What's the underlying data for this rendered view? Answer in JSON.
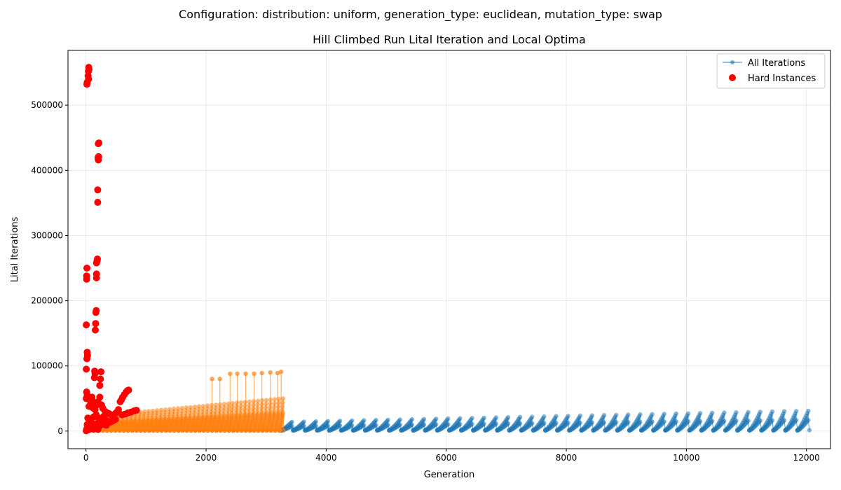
{
  "suptitle": "Configuration: distribution: uniform, generation_type: euclidean, mutation_type: swap",
  "chart_data": {
    "type": "scatter",
    "title": "Hill Climbed Run Lital Iteration and Local Optima",
    "xlabel": "Generation",
    "ylabel": "Lital Iterations",
    "xlim": [
      -300,
      12400
    ],
    "ylim": [
      -27000,
      584000
    ],
    "xticks": [
      0,
      2000,
      4000,
      6000,
      8000,
      10000,
      12000
    ],
    "yticks": [
      0,
      100000,
      200000,
      300000,
      400000,
      500000
    ],
    "grid": true,
    "legend": {
      "placement": "upper right",
      "entries": [
        "All Iterations",
        "Hard Instances"
      ]
    },
    "colors": {
      "blue_run": "#1f77b4",
      "orange_run": "#ff7f0e",
      "hard": "#ff0000"
    },
    "series": [
      {
        "name": "All Iterations",
        "style": "line-marker",
        "runs": [
          {
            "color": "#1f77b4",
            "x_start": 3250,
            "x_end": 12100,
            "cycle_length": 200,
            "peak_start": 14000,
            "peak_end": 31000,
            "trough": 1500
          },
          {
            "color": "#ff7f0e",
            "x_start": 0,
            "x_end": 3270,
            "cycle_length": 70,
            "peak_start": 22000,
            "peak_end": 50000,
            "trough": 1000,
            "spikes": [
              {
                "x": 2100,
                "y": 80000
              },
              {
                "x": 2230,
                "y": 80000
              },
              {
                "x": 2400,
                "y": 88000
              },
              {
                "x": 2520,
                "y": 88000
              },
              {
                "x": 2660,
                "y": 88000
              },
              {
                "x": 2800,
                "y": 88000
              },
              {
                "x": 2930,
                "y": 89000
              },
              {
                "x": 3070,
                "y": 90000
              },
              {
                "x": 3190,
                "y": 89000
              },
              {
                "x": 3250,
                "y": 91000
              }
            ]
          }
        ]
      },
      {
        "name": "Hard Instances",
        "style": "scatter",
        "points": [
          {
            "x": 45,
            "y": 558000
          },
          {
            "x": 50,
            "y": 555000
          },
          {
            "x": 40,
            "y": 552000
          },
          {
            "x": 35,
            "y": 545000
          },
          {
            "x": 42,
            "y": 540000
          },
          {
            "x": 20,
            "y": 535000
          },
          {
            "x": 15,
            "y": 532000
          },
          {
            "x": 215,
            "y": 442000
          },
          {
            "x": 205,
            "y": 441000
          },
          {
            "x": 210,
            "y": 421000
          },
          {
            "x": 200,
            "y": 419000
          },
          {
            "x": 205,
            "y": 416000
          },
          {
            "x": 195,
            "y": 370000
          },
          {
            "x": 195,
            "y": 351000
          },
          {
            "x": 190,
            "y": 264000
          },
          {
            "x": 185,
            "y": 261000
          },
          {
            "x": 175,
            "y": 258000
          },
          {
            "x": 15,
            "y": 250000
          },
          {
            "x": 175,
            "y": 241000
          },
          {
            "x": 10,
            "y": 238000
          },
          {
            "x": 175,
            "y": 235000
          },
          {
            "x": 10,
            "y": 233000
          },
          {
            "x": 170,
            "y": 185000
          },
          {
            "x": 165,
            "y": 182000
          },
          {
            "x": 160,
            "y": 165000
          },
          {
            "x": 5,
            "y": 163000
          },
          {
            "x": 155,
            "y": 155000
          },
          {
            "x": 20,
            "y": 121000
          },
          {
            "x": 25,
            "y": 116000
          },
          {
            "x": 15,
            "y": 111000
          },
          {
            "x": 5,
            "y": 95000
          },
          {
            "x": 145,
            "y": 92000
          },
          {
            "x": 250,
            "y": 91000
          },
          {
            "x": 150,
            "y": 88000
          },
          {
            "x": 140,
            "y": 82000
          },
          {
            "x": 240,
            "y": 80000
          },
          {
            "x": 230,
            "y": 70000
          },
          {
            "x": 10,
            "y": 60000
          },
          {
            "x": 20,
            "y": 55000
          },
          {
            "x": 5,
            "y": 50000
          },
          {
            "x": 100,
            "y": 52000
          },
          {
            "x": 60,
            "y": 48000
          },
          {
            "x": 230,
            "y": 52000
          },
          {
            "x": 120,
            "y": 45000
          },
          {
            "x": 80,
            "y": 42000
          },
          {
            "x": 200,
            "y": 45000
          },
          {
            "x": 180,
            "y": 40000
          },
          {
            "x": 50,
            "y": 38000
          },
          {
            "x": 110,
            "y": 36000
          },
          {
            "x": 260,
            "y": 40000
          },
          {
            "x": 280,
            "y": 35000
          },
          {
            "x": 150,
            "y": 33000
          },
          {
            "x": 320,
            "y": 30000
          },
          {
            "x": 350,
            "y": 28000
          },
          {
            "x": 380,
            "y": 27000
          },
          {
            "x": 420,
            "y": 25000
          },
          {
            "x": 460,
            "y": 24000
          },
          {
            "x": 500,
            "y": 28000
          },
          {
            "x": 540,
            "y": 33000
          },
          {
            "x": 570,
            "y": 45000
          },
          {
            "x": 590,
            "y": 48000
          },
          {
            "x": 610,
            "y": 52000
          },
          {
            "x": 640,
            "y": 56000
          },
          {
            "x": 670,
            "y": 60000
          },
          {
            "x": 690,
            "y": 62000
          },
          {
            "x": 710,
            "y": 63000
          },
          {
            "x": 600,
            "y": 25000
          },
          {
            "x": 650,
            "y": 26000
          },
          {
            "x": 700,
            "y": 28000
          },
          {
            "x": 750,
            "y": 29000
          },
          {
            "x": 800,
            "y": 31000
          },
          {
            "x": 840,
            "y": 32000
          },
          {
            "x": 30,
            "y": 20000
          },
          {
            "x": 70,
            "y": 18000
          },
          {
            "x": 130,
            "y": 22000
          },
          {
            "x": 170,
            "y": 25000
          },
          {
            "x": 210,
            "y": 20000
          },
          {
            "x": 240,
            "y": 18000
          },
          {
            "x": 290,
            "y": 22000
          },
          {
            "x": 330,
            "y": 17000
          },
          {
            "x": 370,
            "y": 15000
          },
          {
            "x": 410,
            "y": 14000
          },
          {
            "x": 450,
            "y": 16000
          },
          {
            "x": 490,
            "y": 18000
          },
          {
            "x": 20,
            "y": 10000
          },
          {
            "x": 60,
            "y": 8000
          },
          {
            "x": 100,
            "y": 12000
          },
          {
            "x": 140,
            "y": 9000
          },
          {
            "x": 180,
            "y": 11000
          },
          {
            "x": 220,
            "y": 7000
          },
          {
            "x": 260,
            "y": 12000
          },
          {
            "x": 300,
            "y": 10000
          },
          {
            "x": 340,
            "y": 9000
          },
          {
            "x": 10,
            "y": 3000
          },
          {
            "x": 40,
            "y": 2000
          },
          {
            "x": 80,
            "y": 4000
          },
          {
            "x": 120,
            "y": 3000
          },
          {
            "x": 160,
            "y": 5000
          },
          {
            "x": 200,
            "y": 2500
          },
          {
            "x": 5,
            "y": 500
          }
        ]
      }
    ]
  }
}
